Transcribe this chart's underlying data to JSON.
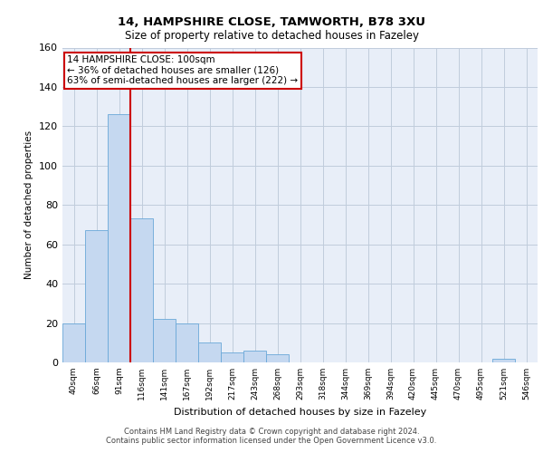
{
  "title1": "14, HAMPSHIRE CLOSE, TAMWORTH, B78 3XU",
  "title2": "Size of property relative to detached houses in Fazeley",
  "xlabel": "Distribution of detached houses by size in Fazeley",
  "ylabel": "Number of detached properties",
  "categories": [
    "40sqm",
    "66sqm",
    "91sqm",
    "116sqm",
    "141sqm",
    "167sqm",
    "192sqm",
    "217sqm",
    "243sqm",
    "268sqm",
    "293sqm",
    "318sqm",
    "344sqm",
    "369sqm",
    "394sqm",
    "420sqm",
    "445sqm",
    "470sqm",
    "495sqm",
    "521sqm",
    "546sqm"
  ],
  "values": [
    20,
    67,
    126,
    73,
    22,
    20,
    10,
    5,
    6,
    4,
    0,
    0,
    0,
    0,
    0,
    0,
    0,
    0,
    0,
    2,
    0
  ],
  "bar_color": "#c5d8f0",
  "bar_edge_color": "#6aa8d8",
  "vline_x": 2.5,
  "vline_color": "#cc0000",
  "ylim": [
    0,
    160
  ],
  "yticks": [
    0,
    20,
    40,
    60,
    80,
    100,
    120,
    140,
    160
  ],
  "annotation_text": "14 HAMPSHIRE CLOSE: 100sqm\n← 36% of detached houses are smaller (126)\n63% of semi-detached houses are larger (222) →",
  "annotation_box_color": "#cc0000",
  "footer1": "Contains HM Land Registry data © Crown copyright and database right 2024.",
  "footer2": "Contains public sector information licensed under the Open Government Licence v3.0.",
  "plot_bg": "#e8eef8",
  "grid_color": "#c0ccdc"
}
